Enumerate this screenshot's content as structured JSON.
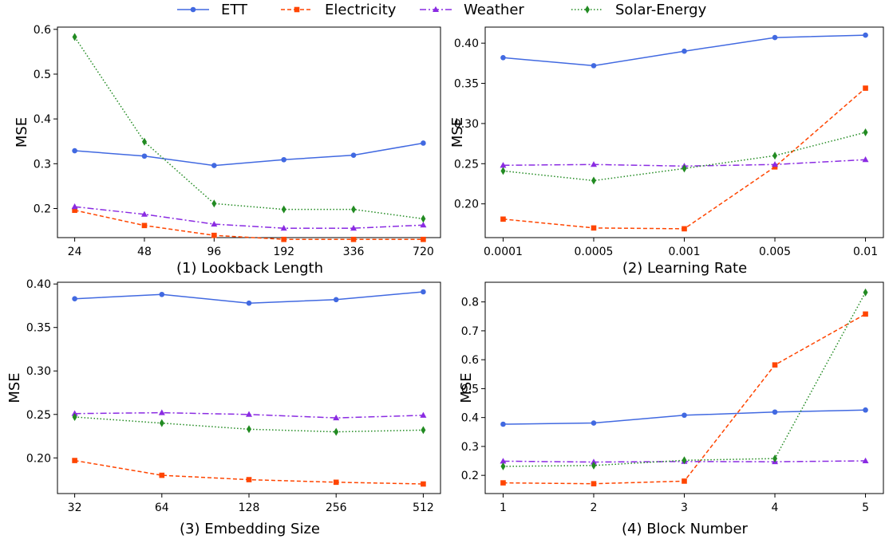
{
  "legend": [
    {
      "name": "ETT",
      "color": "#4169e1",
      "dash": "",
      "marker": "circle"
    },
    {
      "name": "Electricity",
      "color": "#ff4500",
      "dash": "5,3",
      "marker": "square"
    },
    {
      "name": "Weather",
      "color": "#8a2be2",
      "dash": "8,3,2,3",
      "marker": "triangle"
    },
    {
      "name": "Solar-Energy",
      "color": "#228b22",
      "dash": "1.5,2.5",
      "marker": "diamond"
    }
  ],
  "chart_data": [
    {
      "type": "line",
      "xlabel": "(1) Lookback Length",
      "ylabel": "MSE",
      "categories": [
        "24",
        "48",
        "96",
        "192",
        "336",
        "720"
      ],
      "ylim": [
        0.135,
        0.605
      ],
      "yticks": [
        "0.2",
        "0.3",
        "0.4",
        "0.5",
        "0.6"
      ],
      "series": [
        {
          "name": "ETT",
          "values": [
            0.329,
            0.317,
            0.296,
            0.309,
            0.319,
            0.346
          ]
        },
        {
          "name": "Electricity",
          "values": [
            0.196,
            0.162,
            0.14,
            0.131,
            0.131,
            0.131
          ]
        },
        {
          "name": "Weather",
          "values": [
            0.204,
            0.187,
            0.165,
            0.156,
            0.156,
            0.163
          ]
        },
        {
          "name": "Solar-Energy",
          "values": [
            0.583,
            0.349,
            0.211,
            0.198,
            0.198,
            0.177
          ]
        }
      ]
    },
    {
      "type": "line",
      "xlabel": "(2) Learning Rate",
      "ylabel": "MSE",
      "categories": [
        "0.0001",
        "0.0005",
        "0.001",
        "0.005",
        "0.01"
      ],
      "ylim": [
        0.158,
        0.42
      ],
      "yticks": [
        "0.20",
        "0.25",
        "0.30",
        "0.35",
        "0.40"
      ],
      "series": [
        {
          "name": "ETT",
          "values": [
            0.382,
            0.372,
            0.39,
            0.407,
            0.41
          ]
        },
        {
          "name": "Electricity",
          "values": [
            0.181,
            0.17,
            0.169,
            0.246,
            0.344
          ]
        },
        {
          "name": "Weather",
          "values": [
            0.248,
            0.249,
            0.247,
            0.249,
            0.255
          ]
        },
        {
          "name": "Solar-Energy",
          "values": [
            0.241,
            0.229,
            0.244,
            0.26,
            0.289
          ]
        }
      ]
    },
    {
      "type": "line",
      "xlabel": "(3) Embedding Size",
      "ylabel": "MSE",
      "categories": [
        "32",
        "64",
        "128",
        "256",
        "512"
      ],
      "ylim": [
        0.159,
        0.402
      ],
      "yticks": [
        "0.20",
        "0.25",
        "0.30",
        "0.35",
        "0.40"
      ],
      "series": [
        {
          "name": "ETT",
          "values": [
            0.383,
            0.388,
            0.378,
            0.382,
            0.391
          ]
        },
        {
          "name": "Electricity",
          "values": [
            0.197,
            0.18,
            0.175,
            0.172,
            0.17
          ]
        },
        {
          "name": "Weather",
          "values": [
            0.251,
            0.252,
            0.25,
            0.246,
            0.249
          ]
        },
        {
          "name": "Solar-Energy",
          "values": [
            0.247,
            0.24,
            0.233,
            0.23,
            0.232
          ]
        }
      ]
    },
    {
      "type": "line",
      "xlabel": "(4) Block Number",
      "ylabel": "MSE",
      "categories": [
        "1",
        "2",
        "3",
        "4",
        "5"
      ],
      "ylim": [
        0.137,
        0.868
      ],
      "yticks": [
        "0.2",
        "0.3",
        "0.4",
        "0.5",
        "0.6",
        "0.7",
        "0.8"
      ],
      "series": [
        {
          "name": "ETT",
          "values": [
            0.377,
            0.381,
            0.408,
            0.419,
            0.426
          ]
        },
        {
          "name": "Electricity",
          "values": [
            0.174,
            0.171,
            0.18,
            0.582,
            0.758
          ]
        },
        {
          "name": "Weather",
          "values": [
            0.249,
            0.246,
            0.248,
            0.247,
            0.25
          ]
        },
        {
          "name": "Solar-Energy",
          "values": [
            0.231,
            0.234,
            0.252,
            0.258,
            0.833
          ]
        }
      ]
    }
  ]
}
